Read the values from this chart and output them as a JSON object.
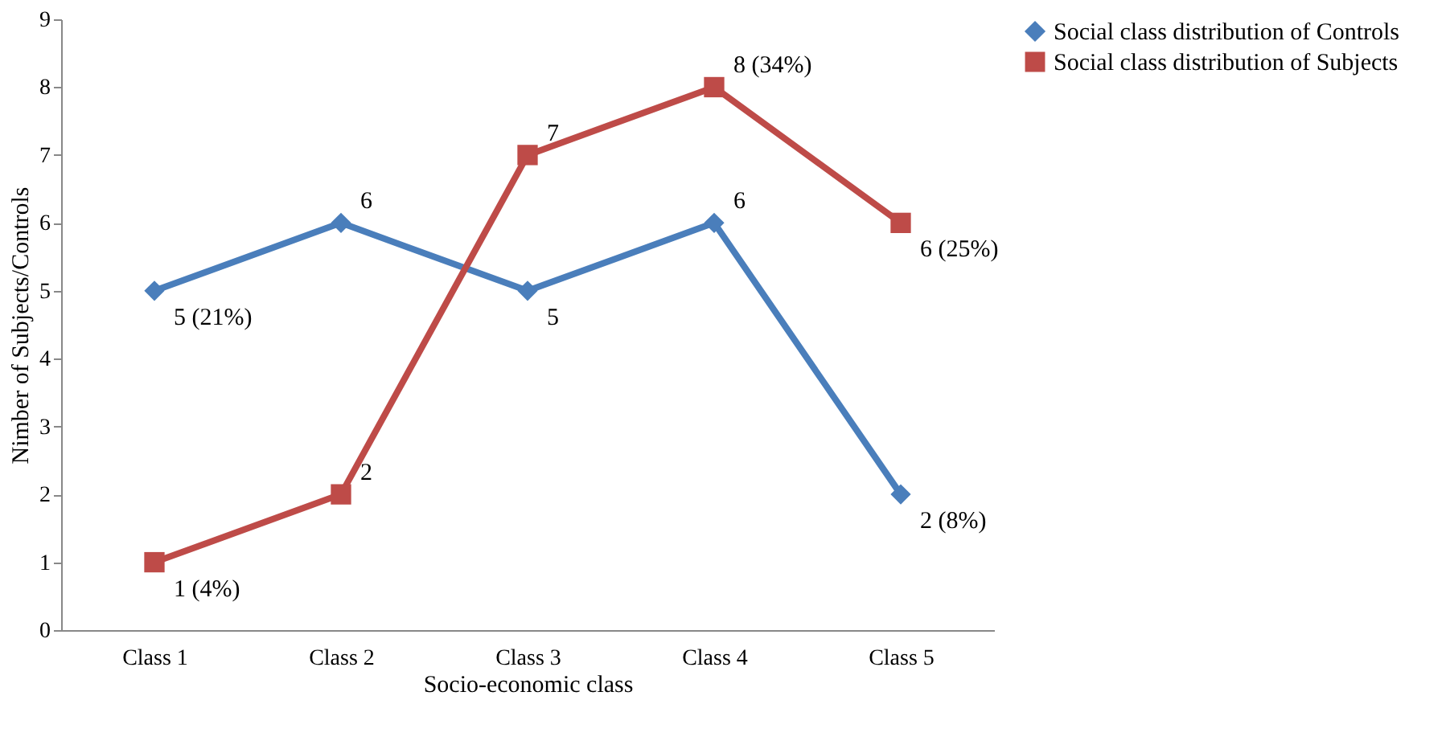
{
  "chart_data": {
    "type": "line",
    "xlabel": "Socio-economic class",
    "ylabel": "Nimber of Subjects/Controls",
    "categories": [
      "Class 1",
      "Class 2",
      "Class 3",
      "Class 4",
      "Class 5"
    ],
    "series": [
      {
        "name": "Social class distribution of Controls",
        "color": "#4a7ebb",
        "marker": "diamond",
        "values": [
          5,
          6,
          5,
          6,
          2
        ],
        "value_labels": [
          "5 (21%)",
          "6",
          "5",
          "6",
          "2 (8%)"
        ]
      },
      {
        "name": "Social class distribution of Subjects",
        "color": "#be4b48",
        "marker": "square",
        "values": [
          1,
          2,
          7,
          8,
          6
        ],
        "value_labels": [
          "1 (4%)",
          "2",
          "7",
          "8 (34%)",
          "6 (25%)"
        ]
      }
    ],
    "ylim": [
      0,
      9
    ],
    "yticks": [
      0,
      1,
      2,
      3,
      4,
      5,
      6,
      7,
      8,
      9
    ],
    "grid": false,
    "legend": "right"
  }
}
